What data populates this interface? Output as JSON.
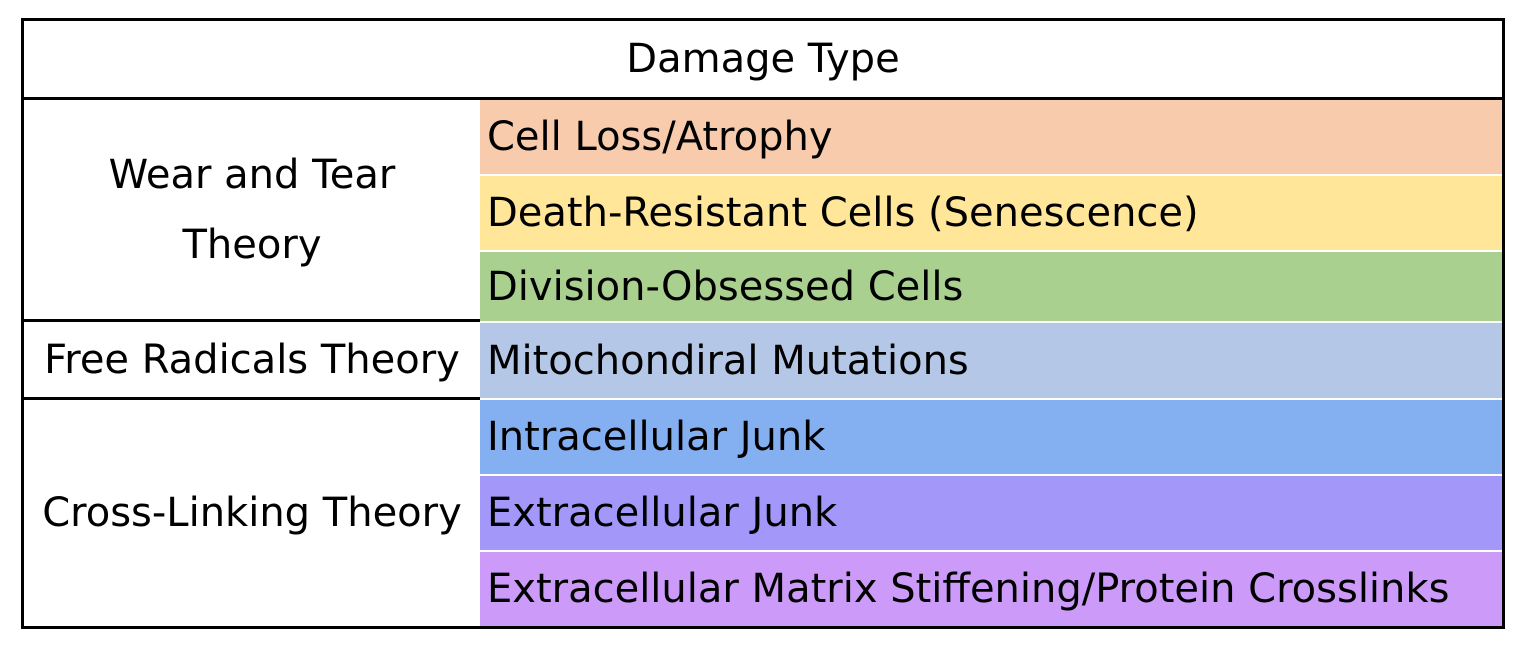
{
  "table": {
    "header": "Damage Type",
    "theories": [
      {
        "label_line1": "Wear and Tear",
        "label_line2": "Theory"
      },
      {
        "label": "Free Radicals Theory"
      },
      {
        "label": "Cross-Linking Theory"
      }
    ],
    "damage_types": [
      {
        "label": "Cell Loss/Atrophy",
        "color": "#F8CBAD"
      },
      {
        "label": "Death-Resistant Cells (Senescence)",
        "color": "#FFE699"
      },
      {
        "label": "Division-Obsessed Cells",
        "color": "#A9D08E"
      },
      {
        "label": "Mitochondiral Mutations",
        "color": "#B4C7E7"
      },
      {
        "label": "Intracellular Junk",
        "color": "#84B0F2"
      },
      {
        "label": "Extracellular Junk",
        "color": "#A397FA"
      },
      {
        "label": "Extracellular Matrix Stiffening/Protein Crosslinks",
        "color": "#CC9AF8"
      }
    ]
  }
}
